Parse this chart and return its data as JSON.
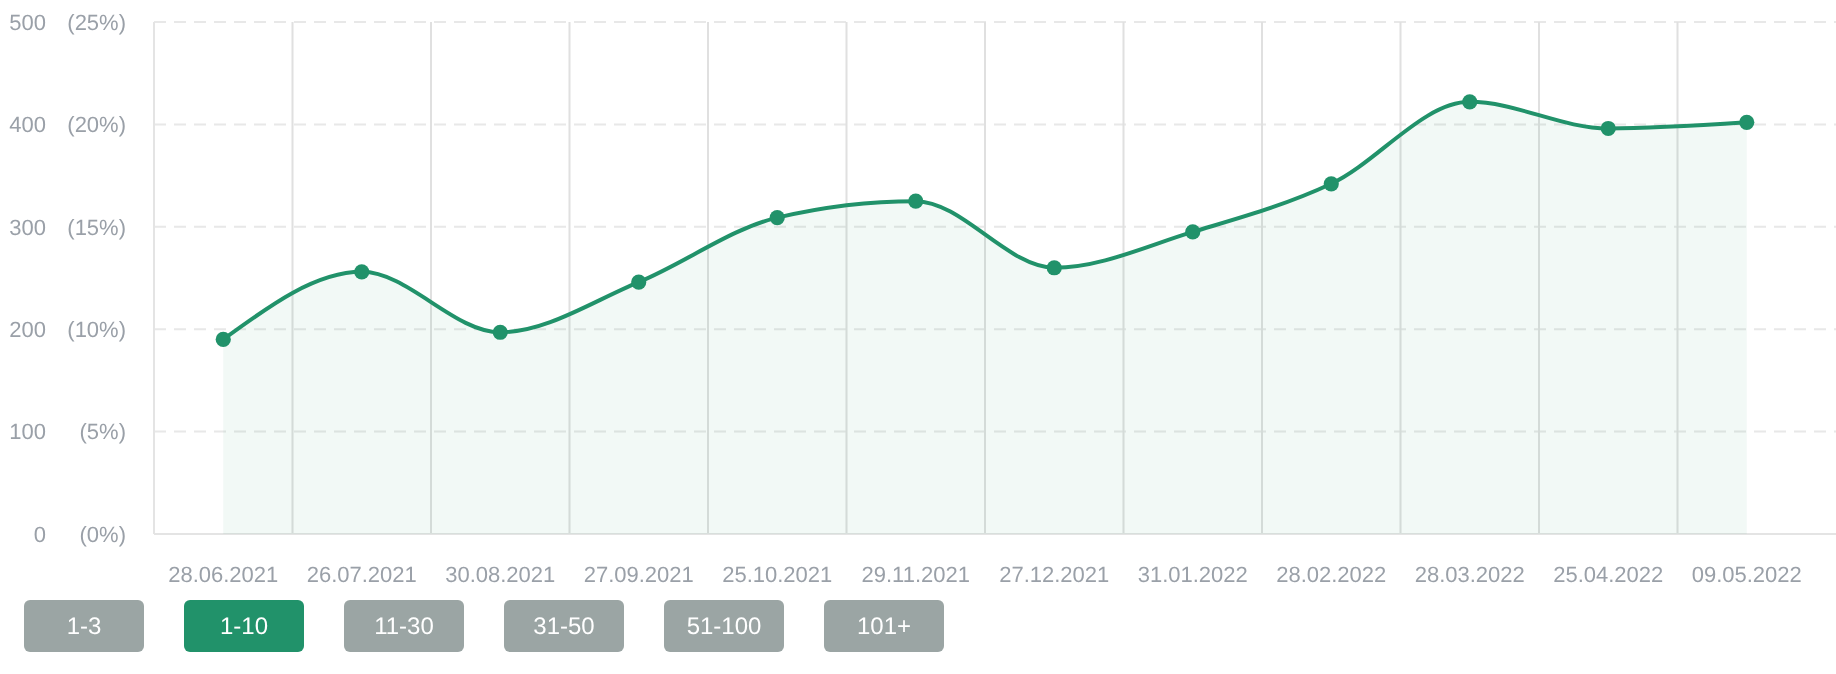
{
  "chart_data": {
    "type": "area",
    "categories": [
      "28.06.2021",
      "26.07.2021",
      "30.08.2021",
      "27.09.2021",
      "25.10.2021",
      "29.11.2021",
      "27.12.2021",
      "31.01.2022",
      "28.02.2022",
      "28.03.2022",
      "25.04.2022",
      "09.05.2022"
    ],
    "series": [
      {
        "color": "#21926a",
        "values": [
          190,
          256,
          197,
          246,
          309,
          325,
          260,
          295,
          342,
          422,
          396,
          402
        ]
      }
    ],
    "ylim": [
      0,
      500
    ],
    "yticks": [
      0,
      100,
      200,
      300,
      400,
      500
    ],
    "y2lim": [
      0,
      25
    ],
    "y2ticks": [
      {
        "value": 0,
        "label": "(0%)"
      },
      {
        "value": 5,
        "label": "(5%)"
      },
      {
        "value": 10,
        "label": "(10%)"
      },
      {
        "value": 15,
        "label": "(15%)"
      },
      {
        "value": 20,
        "label": "(20%)"
      },
      {
        "value": 25,
        "label": "(25%)"
      }
    ],
    "grid": true,
    "marker": "circle",
    "annotations": [
      "1-3",
      "1-10",
      "11-30",
      "31-50",
      "51-100",
      "101+"
    ]
  }
}
